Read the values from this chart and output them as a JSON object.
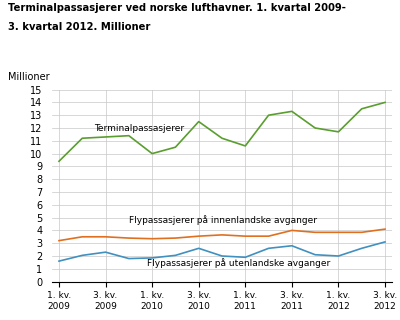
{
  "title_line1": "Terminalpassasjerer ved norske lufthavner. 1. kvartal 2009-",
  "title_line2": "3. kvartal 2012. Millioner",
  "ylabel": "Millioner",
  "xlabels": [
    "1. kv.\n2009",
    "3. kv.\n2009",
    "1. kv.\n2010",
    "3. kv.\n2010",
    "1. kv.\n2011",
    "3. kv.\n2011",
    "1. kv.\n2012",
    "3. kv.\n2012"
  ],
  "x_tick_positions": [
    0,
    2,
    4,
    6,
    8,
    10,
    12,
    14
  ],
  "terminal_passasjerer": [
    9.4,
    11.2,
    11.3,
    11.4,
    10.0,
    10.5,
    12.5,
    11.2,
    10.6,
    13.0,
    13.3,
    12.0,
    11.7,
    13.5,
    14.0
  ],
  "innenlandske": [
    3.2,
    3.5,
    3.5,
    3.4,
    3.35,
    3.4,
    3.55,
    3.65,
    3.55,
    3.55,
    4.0,
    3.85,
    3.85,
    3.85,
    4.1
  ],
  "utenlandske": [
    1.6,
    2.05,
    2.3,
    1.8,
    1.85,
    2.05,
    2.6,
    2.0,
    1.9,
    2.6,
    2.8,
    2.1,
    2.0,
    2.6,
    3.1
  ],
  "color_terminal": "#5a9e2f",
  "color_innenlandske": "#e07020",
  "color_utenlandske": "#4090c0",
  "label_terminal": "Terminalpassasjerer",
  "label_innenlandske": "Flypassasjerer på innenlandske avganger",
  "label_utenlandske": "Flypassasjerer på utenlandske avganger",
  "ann_terminal_x": 1.5,
  "ann_terminal_y": 11.75,
  "ann_innenlandske_x": 3.0,
  "ann_innenlandske_y": 4.55,
  "ann_utenlandske_x": 3.8,
  "ann_utenlandske_y": 1.2,
  "ylim": [
    0,
    15
  ],
  "yticks": [
    0,
    1,
    2,
    3,
    4,
    5,
    6,
    7,
    8,
    9,
    10,
    11,
    12,
    13,
    14,
    15
  ],
  "background_color": "#ffffff",
  "grid_color": "#c8c8c8"
}
